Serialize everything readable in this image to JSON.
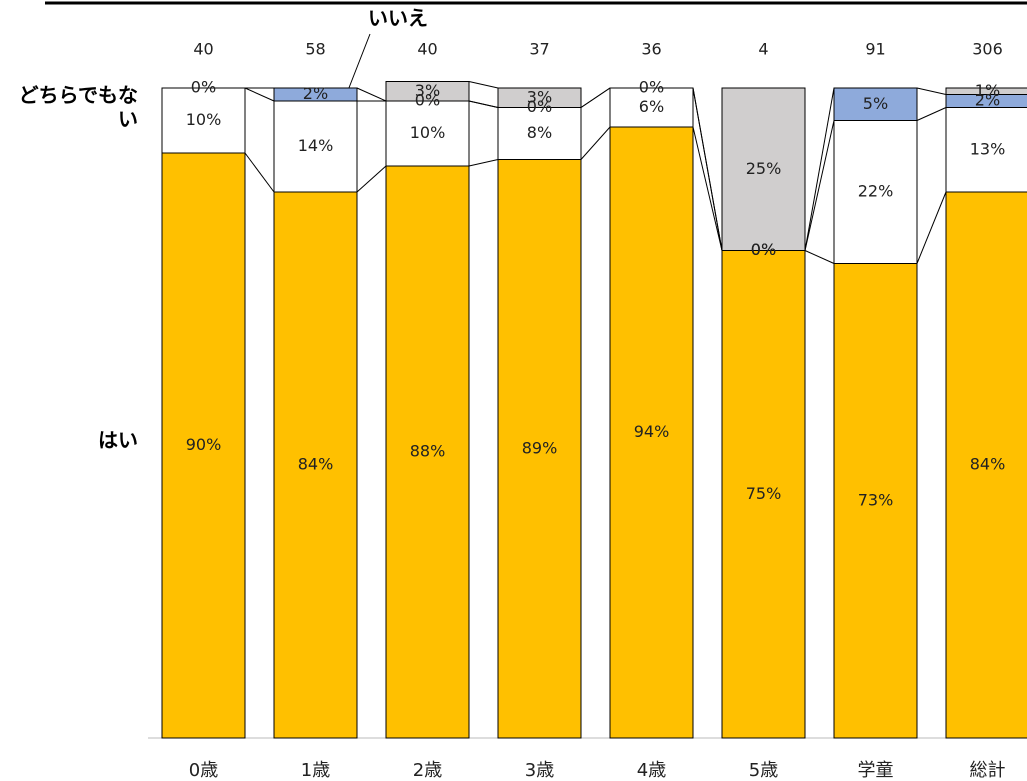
{
  "chart_data": {
    "type": "stacked-bar-100",
    "categories": [
      "0歳",
      "1歳",
      "2歳",
      "3歳",
      "4歳",
      "5歳",
      "学童",
      "総計"
    ],
    "totals": [
      40,
      58,
      40,
      37,
      36,
      4,
      91,
      306
    ],
    "ylim": [
      0,
      100
    ],
    "series": [
      {
        "name": "はい",
        "color": "#ffc000",
        "values": [
          90,
          84,
          88,
          89,
          94,
          75,
          73,
          84
        ],
        "value_labels": [
          "90%",
          "84%",
          "88%",
          "89%",
          "94%",
          "75%",
          "73%",
          "84%"
        ]
      },
      {
        "name": "どちらでもない",
        "color": "#ffffff",
        "values": [
          10,
          14,
          10,
          8,
          6,
          0,
          22,
          13
        ],
        "value_labels": [
          "10%",
          "14%",
          "10%",
          "8%",
          "6%",
          "0%",
          "22%",
          "13%"
        ]
      },
      {
        "name": "いいえ",
        "color": "#8eaadb",
        "values": [
          0,
          2,
          0,
          0,
          0,
          0,
          5,
          2
        ],
        "value_labels": [
          "0%",
          "2%",
          "0%",
          "0%",
          "0%",
          "0%",
          "5%",
          "2%"
        ]
      },
      {
        "color": "#d0cece",
        "values": [
          null,
          null,
          3,
          3,
          null,
          25,
          null,
          1
        ],
        "value_labels": [
          null,
          null,
          "3%",
          "3%",
          null,
          "25%",
          null,
          "1%"
        ]
      }
    ]
  }
}
